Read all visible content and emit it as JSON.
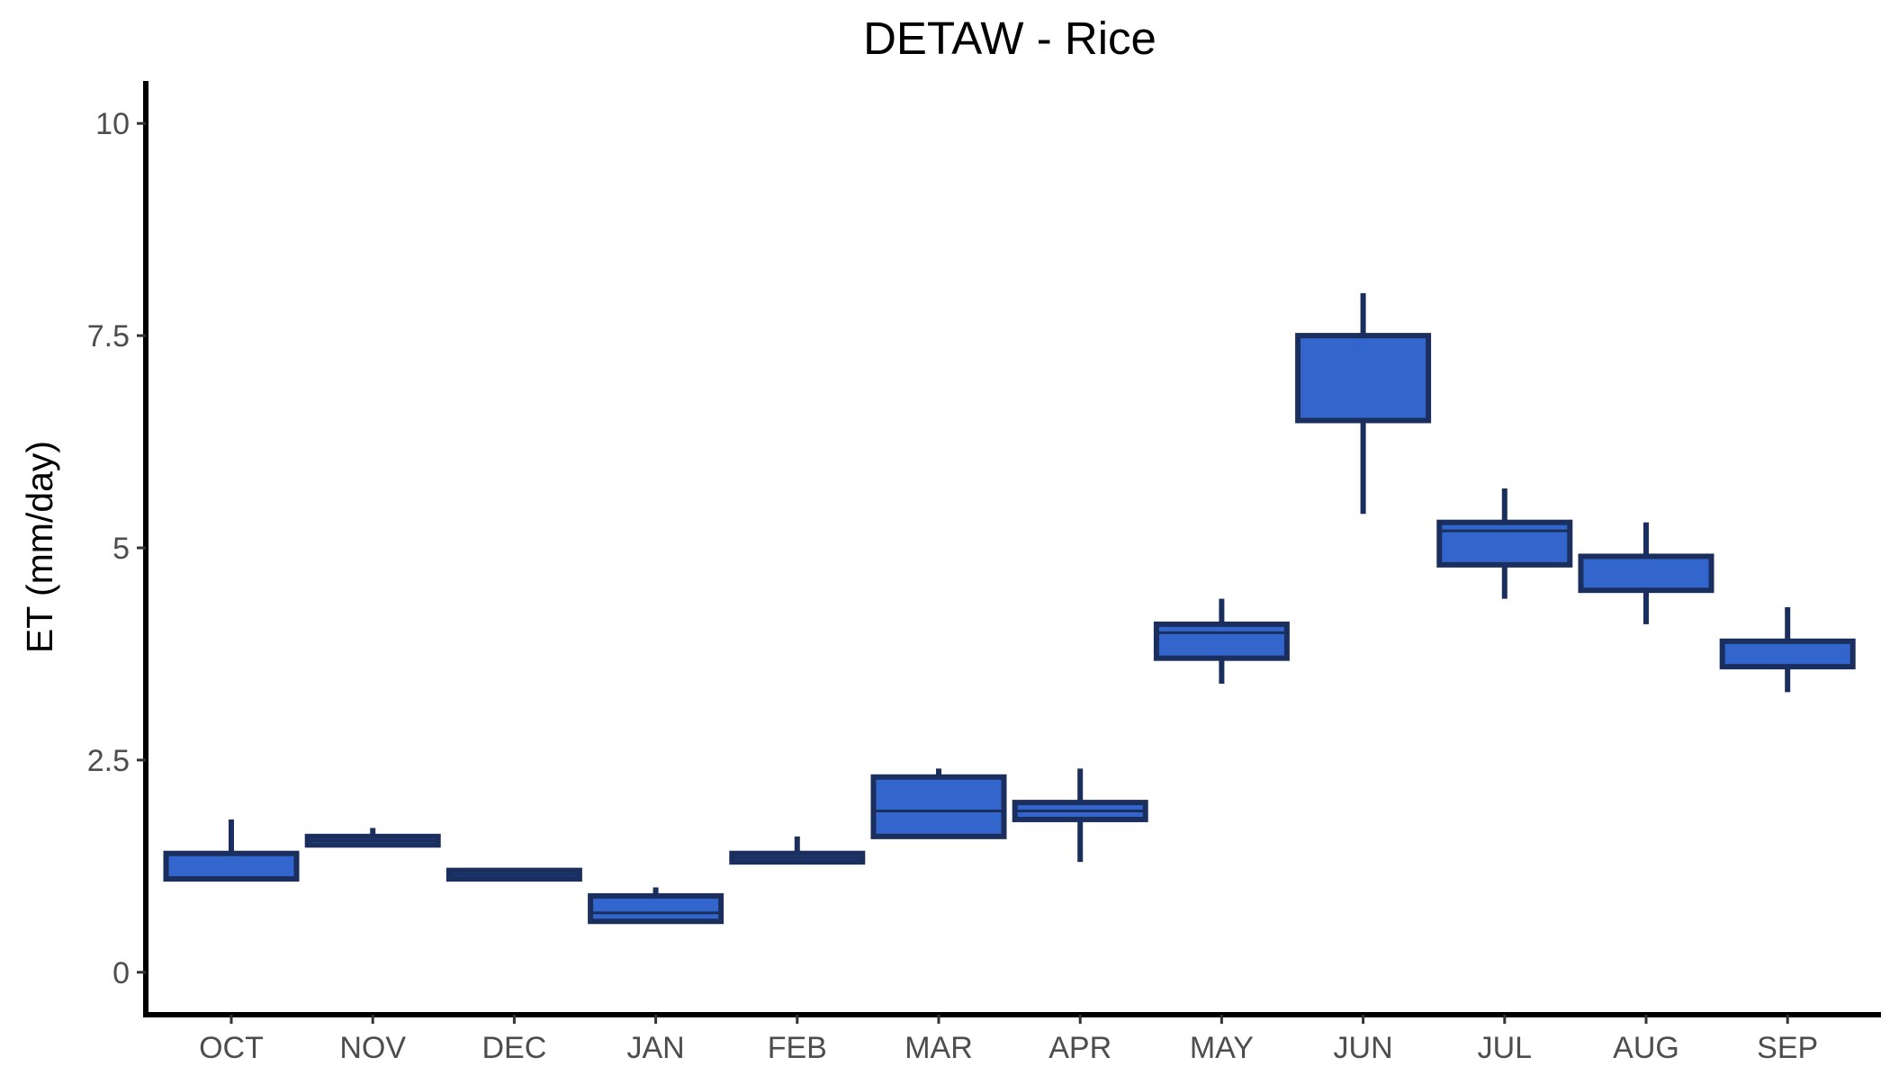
{
  "chart_data": {
    "type": "boxplot",
    "title": "DETAW - Rice",
    "xlabel": "",
    "ylabel": "ET (mm/day)",
    "ylim": [
      -0.5,
      10.5
    ],
    "yticks": [
      0,
      2.5,
      5,
      7.5,
      10
    ],
    "ytick_labels": [
      "0",
      "2.5",
      "5",
      "7.5",
      "10"
    ],
    "grid": false,
    "legend": "none",
    "colors": {
      "box_fill": "#3366CC",
      "box_outline": "#1A2F5E",
      "axis": "#000000",
      "tick_text": "#4D4D4D"
    },
    "categories": [
      "OCT",
      "NOV",
      "DEC",
      "JAN",
      "FEB",
      "MAR",
      "APR",
      "MAY",
      "JUN",
      "JUL",
      "AUG",
      "SEP"
    ],
    "series": [
      {
        "stats": [
          {
            "min": 1.1,
            "q1": 1.1,
            "median": 1.1,
            "q3": 1.4,
            "max": 1.8
          },
          {
            "min": 1.5,
            "q1": 1.5,
            "median": 1.55,
            "q3": 1.6,
            "max": 1.7
          },
          {
            "min": 1.1,
            "q1": 1.1,
            "median": 1.15,
            "q3": 1.2,
            "max": 1.2
          },
          {
            "min": 0.6,
            "q1": 0.6,
            "median": 0.7,
            "q3": 0.9,
            "max": 1.0
          },
          {
            "min": 1.3,
            "q1": 1.3,
            "median": 1.35,
            "q3": 1.4,
            "max": 1.6
          },
          {
            "min": 1.6,
            "q1": 1.6,
            "median": 1.9,
            "q3": 2.3,
            "max": 2.4
          },
          {
            "min": 1.3,
            "q1": 1.8,
            "median": 1.9,
            "q3": 2.0,
            "max": 2.4
          },
          {
            "min": 3.4,
            "q1": 3.7,
            "median": 4.0,
            "q3": 4.1,
            "max": 4.4
          },
          {
            "min": 5.4,
            "q1": 6.5,
            "median": 6.5,
            "q3": 7.5,
            "max": 8.0
          },
          {
            "min": 4.4,
            "q1": 4.8,
            "median": 5.2,
            "q3": 5.3,
            "max": 5.7
          },
          {
            "min": 4.1,
            "q1": 4.5,
            "median": 4.9,
            "q3": 4.9,
            "max": 5.3
          },
          {
            "min": 3.3,
            "q1": 3.6,
            "median": 3.6,
            "q3": 3.9,
            "max": 4.3
          }
        ]
      }
    ]
  }
}
